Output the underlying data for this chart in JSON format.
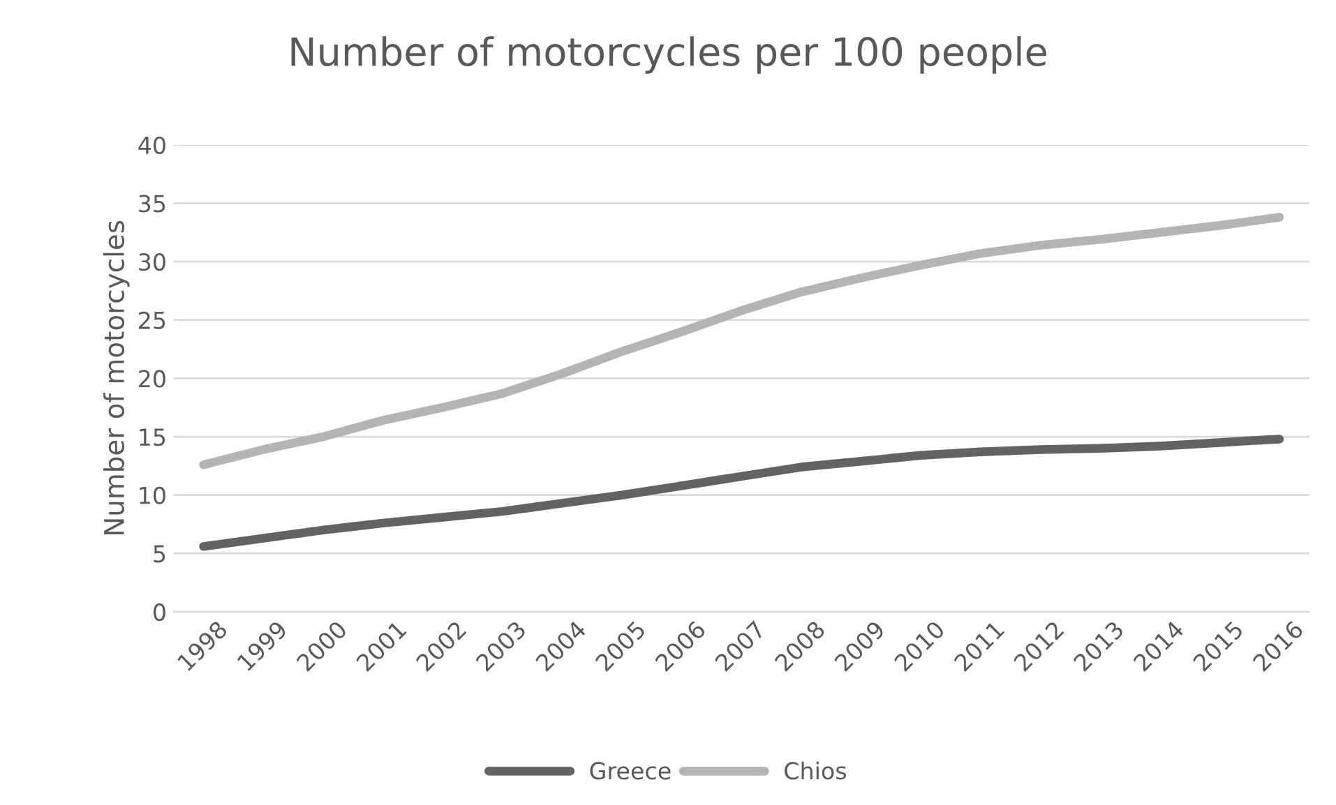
{
  "chart_data": {
    "type": "line",
    "title": "Number of motorcycles per 100 people",
    "ylabel": "Number of motorcycles",
    "categories": [
      "1998",
      "1999",
      "2000",
      "2001",
      "2002",
      "2003",
      "2004",
      "2005",
      "2006",
      "2007",
      "2008",
      "2009",
      "2010",
      "2011",
      "2012",
      "2013",
      "2014",
      "2015",
      "2016"
    ],
    "series": [
      {
        "name": "Greece",
        "color": "#636363",
        "values": [
          5.6,
          6.3,
          7.0,
          7.6,
          8.1,
          8.6,
          9.3,
          10.0,
          10.8,
          11.6,
          12.4,
          12.9,
          13.4,
          13.7,
          13.9,
          14.0,
          14.2,
          14.5,
          14.8
        ]
      },
      {
        "name": "Chios",
        "color": "#b4b4b4",
        "values": [
          12.6,
          13.9,
          15.0,
          16.4,
          17.5,
          18.7,
          20.4,
          22.3,
          24.0,
          25.8,
          27.4,
          28.6,
          29.7,
          30.7,
          31.4,
          31.9,
          32.5,
          33.1,
          33.8
        ]
      }
    ],
    "ylim": [
      0,
      40
    ],
    "yticks": [
      0,
      5,
      10,
      15,
      20,
      25,
      30,
      35,
      40
    ],
    "grid": "y",
    "legend": "bottom",
    "marker": "none",
    "line_style": "solid"
  }
}
